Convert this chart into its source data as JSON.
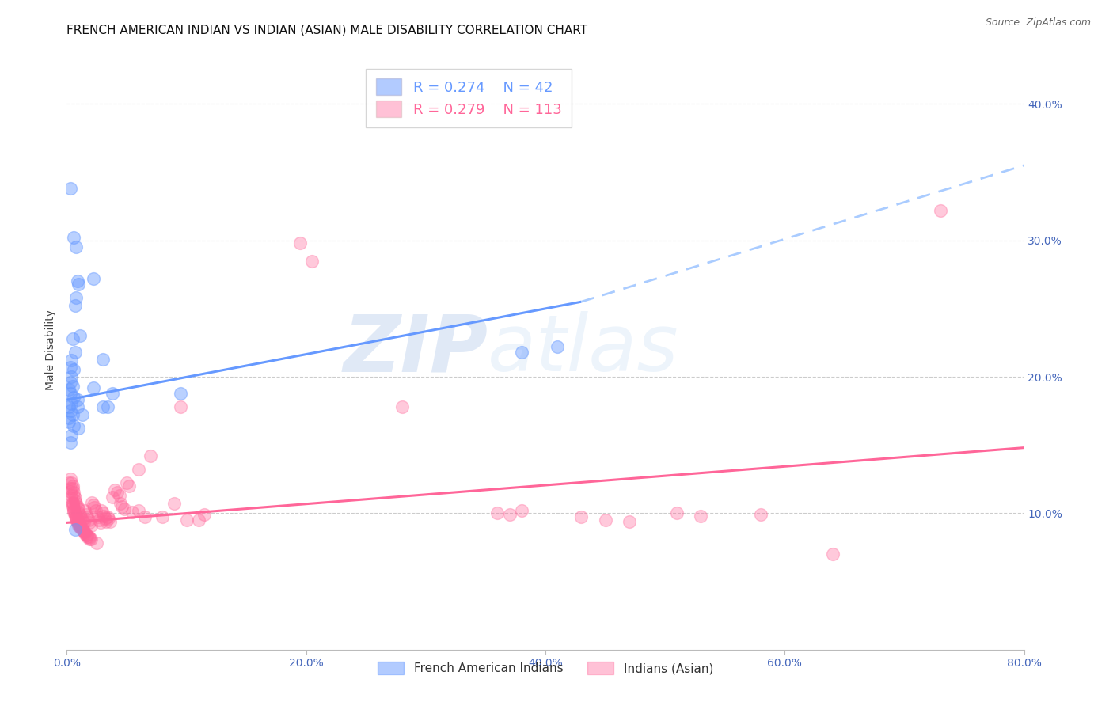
{
  "title": "FRENCH AMERICAN INDIAN VS INDIAN (ASIAN) MALE DISABILITY CORRELATION CHART",
  "source": "Source: ZipAtlas.com",
  "ylabel": "Male Disability",
  "xlim": [
    0.0,
    0.8
  ],
  "ylim": [
    0.0,
    0.44
  ],
  "xlabel_ticks": [
    0.0,
    0.2,
    0.4,
    0.6,
    0.8
  ],
  "xlabel_labels": [
    "0.0%",
    "20.0%",
    "40.0%",
    "60.0%",
    "80.0%"
  ],
  "ylabel_ticks": [
    0.1,
    0.2,
    0.3,
    0.4
  ],
  "ylabel_labels": [
    "10.0%",
    "20.0%",
    "30.0%",
    "40.0%"
  ],
  "legend_labels": [
    "French American Indians",
    "Indians (Asian)"
  ],
  "legend_r_n": [
    {
      "R": "0.274",
      "N": "42"
    },
    {
      "R": "0.279",
      "N": "113"
    }
  ],
  "blue_color": "#6699FF",
  "pink_color": "#FF6699",
  "dashed_color": "#AACCFF",
  "blue_solid_line": {
    "x0": 0.0,
    "y0": 0.183,
    "x1": 0.43,
    "y1": 0.255
  },
  "blue_dashed_line": {
    "x0": 0.43,
    "y0": 0.255,
    "x1": 0.8,
    "y1": 0.355
  },
  "pink_solid_line": {
    "x0": 0.0,
    "y0": 0.093,
    "x1": 0.8,
    "y1": 0.148
  },
  "blue_dots": [
    [
      0.003,
      0.338
    ],
    [
      0.006,
      0.302
    ],
    [
      0.008,
      0.295
    ],
    [
      0.009,
      0.27
    ],
    [
      0.01,
      0.268
    ],
    [
      0.007,
      0.252
    ],
    [
      0.008,
      0.258
    ],
    [
      0.011,
      0.23
    ],
    [
      0.005,
      0.228
    ],
    [
      0.007,
      0.218
    ],
    [
      0.004,
      0.212
    ],
    [
      0.003,
      0.207
    ],
    [
      0.006,
      0.205
    ],
    [
      0.004,
      0.2
    ],
    [
      0.003,
      0.196
    ],
    [
      0.005,
      0.193
    ],
    [
      0.002,
      0.191
    ],
    [
      0.003,
      0.188
    ],
    [
      0.006,
      0.185
    ],
    [
      0.009,
      0.183
    ],
    [
      0.004,
      0.18
    ],
    [
      0.002,
      0.178
    ],
    [
      0.003,
      0.175
    ],
    [
      0.005,
      0.172
    ],
    [
      0.002,
      0.17
    ],
    [
      0.002,
      0.167
    ],
    [
      0.006,
      0.164
    ],
    [
      0.01,
      0.162
    ],
    [
      0.022,
      0.272
    ],
    [
      0.022,
      0.192
    ],
    [
      0.03,
      0.213
    ],
    [
      0.03,
      0.178
    ],
    [
      0.034,
      0.178
    ],
    [
      0.038,
      0.188
    ],
    [
      0.004,
      0.157
    ],
    [
      0.003,
      0.152
    ],
    [
      0.007,
      0.088
    ],
    [
      0.009,
      0.178
    ],
    [
      0.013,
      0.172
    ],
    [
      0.095,
      0.188
    ],
    [
      0.38,
      0.218
    ],
    [
      0.41,
      0.222
    ]
  ],
  "pink_dots": [
    [
      0.002,
      0.122
    ],
    [
      0.003,
      0.118
    ],
    [
      0.003,
      0.116
    ],
    [
      0.004,
      0.113
    ],
    [
      0.004,
      0.111
    ],
    [
      0.005,
      0.108
    ],
    [
      0.005,
      0.107
    ],
    [
      0.005,
      0.106
    ],
    [
      0.005,
      0.105
    ],
    [
      0.006,
      0.103
    ],
    [
      0.006,
      0.102
    ],
    [
      0.006,
      0.101
    ],
    [
      0.007,
      0.1
    ],
    [
      0.007,
      0.099
    ],
    [
      0.007,
      0.098
    ],
    [
      0.008,
      0.097
    ],
    [
      0.008,
      0.096
    ],
    [
      0.008,
      0.095
    ],
    [
      0.009,
      0.095
    ],
    [
      0.009,
      0.094
    ],
    [
      0.009,
      0.093
    ],
    [
      0.01,
      0.093
    ],
    [
      0.01,
      0.092
    ],
    [
      0.01,
      0.091
    ],
    [
      0.011,
      0.091
    ],
    [
      0.011,
      0.09
    ],
    [
      0.012,
      0.09
    ],
    [
      0.012,
      0.089
    ],
    [
      0.013,
      0.089
    ],
    [
      0.013,
      0.088
    ],
    [
      0.014,
      0.087
    ],
    [
      0.014,
      0.086
    ],
    [
      0.015,
      0.086
    ],
    [
      0.015,
      0.085
    ],
    [
      0.016,
      0.084
    ],
    [
      0.017,
      0.084
    ],
    [
      0.017,
      0.083
    ],
    [
      0.018,
      0.083
    ],
    [
      0.019,
      0.082
    ],
    [
      0.019,
      0.081
    ],
    [
      0.02,
      0.081
    ],
    [
      0.003,
      0.125
    ],
    [
      0.004,
      0.122
    ],
    [
      0.005,
      0.12
    ],
    [
      0.005,
      0.118
    ],
    [
      0.006,
      0.115
    ],
    [
      0.006,
      0.113
    ],
    [
      0.007,
      0.111
    ],
    [
      0.007,
      0.109
    ],
    [
      0.008,
      0.107
    ],
    [
      0.009,
      0.105
    ],
    [
      0.01,
      0.103
    ],
    [
      0.01,
      0.101
    ],
    [
      0.011,
      0.099
    ],
    [
      0.012,
      0.097
    ],
    [
      0.013,
      0.095
    ],
    [
      0.014,
      0.093
    ],
    [
      0.015,
      0.102
    ],
    [
      0.016,
      0.099
    ],
    [
      0.017,
      0.097
    ],
    [
      0.018,
      0.095
    ],
    [
      0.019,
      0.093
    ],
    [
      0.02,
      0.091
    ],
    [
      0.021,
      0.108
    ],
    [
      0.022,
      0.106
    ],
    [
      0.023,
      0.104
    ],
    [
      0.024,
      0.102
    ],
    [
      0.025,
      0.078
    ],
    [
      0.026,
      0.097
    ],
    [
      0.027,
      0.095
    ],
    [
      0.028,
      0.093
    ],
    [
      0.029,
      0.102
    ],
    [
      0.03,
      0.1
    ],
    [
      0.031,
      0.098
    ],
    [
      0.032,
      0.096
    ],
    [
      0.033,
      0.094
    ],
    [
      0.034,
      0.097
    ],
    [
      0.035,
      0.096
    ],
    [
      0.036,
      0.094
    ],
    [
      0.038,
      0.112
    ],
    [
      0.04,
      0.117
    ],
    [
      0.042,
      0.115
    ],
    [
      0.044,
      0.113
    ],
    [
      0.045,
      0.107
    ],
    [
      0.046,
      0.105
    ],
    [
      0.048,
      0.103
    ],
    [
      0.05,
      0.122
    ],
    [
      0.052,
      0.12
    ],
    [
      0.055,
      0.101
    ],
    [
      0.06,
      0.132
    ],
    [
      0.06,
      0.102
    ],
    [
      0.065,
      0.097
    ],
    [
      0.07,
      0.142
    ],
    [
      0.08,
      0.097
    ],
    [
      0.09,
      0.107
    ],
    [
      0.095,
      0.178
    ],
    [
      0.1,
      0.095
    ],
    [
      0.11,
      0.095
    ],
    [
      0.115,
      0.099
    ],
    [
      0.195,
      0.298
    ],
    [
      0.205,
      0.285
    ],
    [
      0.28,
      0.178
    ],
    [
      0.36,
      0.1
    ],
    [
      0.37,
      0.099
    ],
    [
      0.38,
      0.102
    ],
    [
      0.43,
      0.097
    ],
    [
      0.45,
      0.095
    ],
    [
      0.47,
      0.094
    ],
    [
      0.51,
      0.1
    ],
    [
      0.53,
      0.098
    ],
    [
      0.58,
      0.099
    ],
    [
      0.64,
      0.07
    ],
    [
      0.73,
      0.322
    ]
  ],
  "watermark_zip": "ZIP",
  "watermark_atlas": "atlas",
  "bg_color": "#FFFFFF",
  "grid_color": "#CCCCCC",
  "axis_tick_color": "#4466BB",
  "title_fontsize": 11,
  "tick_fontsize": 10,
  "source_fontsize": 9
}
